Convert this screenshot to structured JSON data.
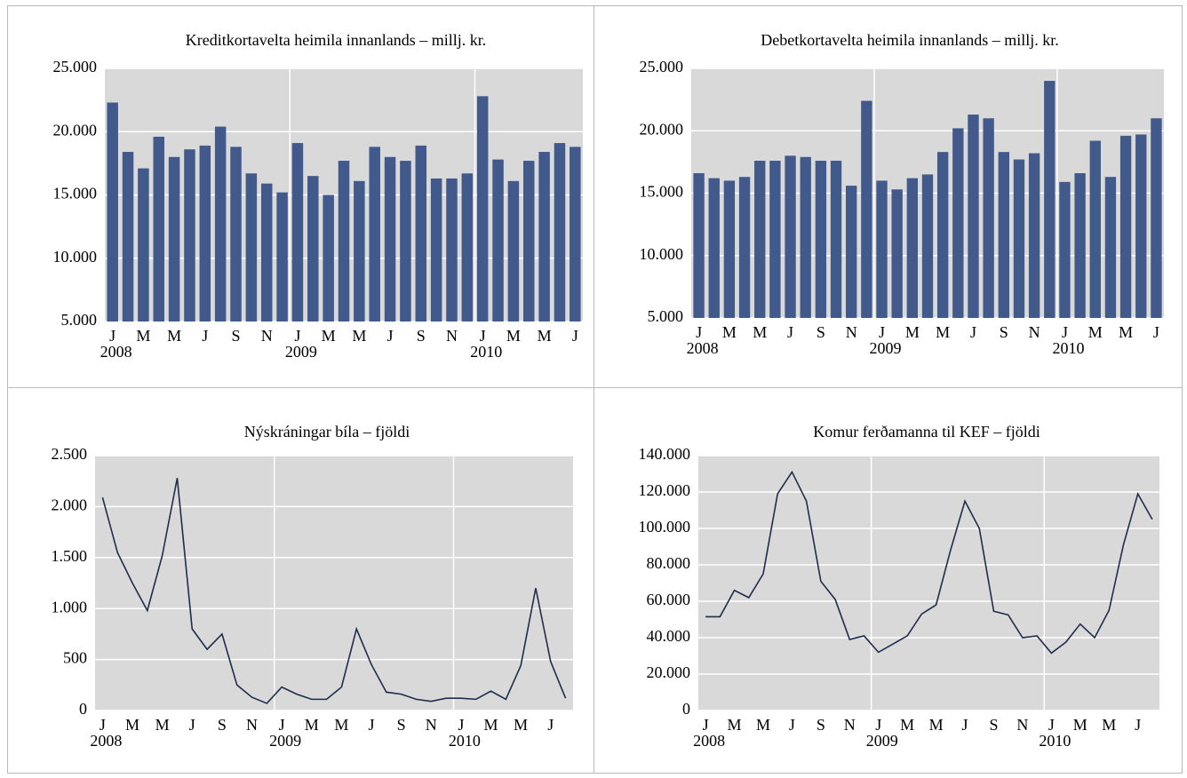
{
  "chart_data": [
    {
      "type": "bar",
      "title": "Kreditkortavelta heimila innanlands – millj. kr.",
      "color": "#41598b",
      "grid": true,
      "categories": [
        [
          "J",
          "2008"
        ],
        [
          null,
          null
        ],
        [
          "M",
          null
        ],
        [
          null,
          null
        ],
        [
          "M",
          null
        ],
        [
          null,
          null
        ],
        [
          "J",
          null
        ],
        [
          null,
          null
        ],
        [
          "S",
          null
        ],
        [
          null,
          null
        ],
        [
          "N",
          null
        ],
        [
          null,
          null
        ],
        [
          "J",
          "2009"
        ],
        [
          null,
          null
        ],
        [
          "M",
          null
        ],
        [
          null,
          null
        ],
        [
          "M",
          null
        ],
        [
          null,
          null
        ],
        [
          "J",
          null
        ],
        [
          null,
          null
        ],
        [
          "S",
          null
        ],
        [
          null,
          null
        ],
        [
          "N",
          null
        ],
        [
          null,
          null
        ],
        [
          "J",
          "2010"
        ],
        [
          null,
          null
        ],
        [
          "M",
          null
        ],
        [
          null,
          null
        ],
        [
          "M",
          null
        ],
        [
          null,
          null
        ],
        [
          "J",
          null
        ]
      ],
      "values": [
        22300,
        18400,
        17100,
        19600,
        18000,
        18600,
        18900,
        20400,
        18800,
        16700,
        15900,
        15200,
        19100,
        16500,
        15000,
        17700,
        16100,
        18800,
        18000,
        17700,
        18900,
        16300,
        16300,
        16700,
        22800,
        17800,
        16100,
        17700,
        18400,
        19100,
        18800
      ],
      "ylim": [
        5000,
        25000
      ],
      "yticks": [
        {
          "value": 5000,
          "label": "5.000"
        },
        {
          "value": 10000,
          "label": "10.000"
        },
        {
          "value": 15000,
          "label": "15.000"
        },
        {
          "value": 20000,
          "label": "20.000"
        },
        {
          "value": 25000,
          "label": "25.000"
        }
      ]
    },
    {
      "type": "bar",
      "title": "Debetkortavelta heimila innanlands – millj. kr.",
      "color": "#41598b",
      "grid": true,
      "categories": [
        [
          "J",
          "2008"
        ],
        [
          null,
          null
        ],
        [
          "M",
          null
        ],
        [
          null,
          null
        ],
        [
          "M",
          null
        ],
        [
          null,
          null
        ],
        [
          "J",
          null
        ],
        [
          null,
          null
        ],
        [
          "S",
          null
        ],
        [
          null,
          null
        ],
        [
          "N",
          null
        ],
        [
          null,
          null
        ],
        [
          "J",
          "2009"
        ],
        [
          null,
          null
        ],
        [
          "M",
          null
        ],
        [
          null,
          null
        ],
        [
          "M",
          null
        ],
        [
          null,
          null
        ],
        [
          "J",
          null
        ],
        [
          null,
          null
        ],
        [
          "S",
          null
        ],
        [
          null,
          null
        ],
        [
          "N",
          null
        ],
        [
          null,
          null
        ],
        [
          "J",
          "2010"
        ],
        [
          null,
          null
        ],
        [
          "M",
          null
        ],
        [
          null,
          null
        ],
        [
          "M",
          null
        ],
        [
          null,
          null
        ],
        [
          "J",
          null
        ]
      ],
      "values": [
        16600,
        16200,
        16000,
        16300,
        17600,
        17600,
        18000,
        17900,
        17600,
        17600,
        15600,
        22400,
        16000,
        15300,
        16200,
        16500,
        18300,
        20200,
        21300,
        21000,
        18300,
        17700,
        18200,
        24000,
        15900,
        16600,
        19200,
        16300,
        19600,
        19700,
        21000
      ],
      "ylim": [
        5000,
        25000
      ],
      "yticks": [
        {
          "value": 5000,
          "label": "5.000"
        },
        {
          "value": 10000,
          "label": "10.000"
        },
        {
          "value": 15000,
          "label": "15.000"
        },
        {
          "value": 20000,
          "label": "20.000"
        },
        {
          "value": 25000,
          "label": "25.000"
        }
      ]
    },
    {
      "type": "line",
      "title": "Nýskráningar bíla – fjöldi",
      "color": "#1f2d4d",
      "grid": true,
      "categories": [
        [
          "J",
          "2008"
        ],
        [
          null,
          null
        ],
        [
          "M",
          null
        ],
        [
          null,
          null
        ],
        [
          "M",
          null
        ],
        [
          null,
          null
        ],
        [
          "J",
          null
        ],
        [
          null,
          null
        ],
        [
          "S",
          null
        ],
        [
          null,
          null
        ],
        [
          "N",
          null
        ],
        [
          null,
          null
        ],
        [
          "J",
          "2009"
        ],
        [
          null,
          null
        ],
        [
          "M",
          null
        ],
        [
          null,
          null
        ],
        [
          "M",
          null
        ],
        [
          null,
          null
        ],
        [
          "J",
          null
        ],
        [
          null,
          null
        ],
        [
          "S",
          null
        ],
        [
          null,
          null
        ],
        [
          "N",
          null
        ],
        [
          null,
          null
        ],
        [
          "J",
          "2010"
        ],
        [
          null,
          null
        ],
        [
          "M",
          null
        ],
        [
          null,
          null
        ],
        [
          "M",
          null
        ],
        [
          null,
          null
        ],
        [
          "J",
          null
        ],
        [
          null,
          null
        ]
      ],
      "values": [
        2090,
        1550,
        1250,
        980,
        1520,
        2280,
        800,
        600,
        750,
        250,
        130,
        70,
        230,
        160,
        110,
        110,
        230,
        800,
        450,
        180,
        160,
        110,
        90,
        120,
        120,
        110,
        190,
        110,
        440,
        1200,
        480,
        120
      ],
      "ylim": [
        0,
        2500
      ],
      "yticks": [
        0,
        500,
        {
          "value": 1000,
          "label": "1.000"
        },
        {
          "value": 1500,
          "label": "1.500"
        },
        {
          "value": 2000,
          "label": "2.000"
        },
        {
          "value": 2500,
          "label": "2.500"
        }
      ]
    },
    {
      "type": "line",
      "title": "Komur ferðamanna til KEF – fjöldi",
      "color": "#1f2d4d",
      "grid": true,
      "categories": [
        [
          "J",
          "2008"
        ],
        [
          null,
          null
        ],
        [
          "M",
          null
        ],
        [
          null,
          null
        ],
        [
          "M",
          null
        ],
        [
          null,
          null
        ],
        [
          "J",
          null
        ],
        [
          null,
          null
        ],
        [
          "S",
          null
        ],
        [
          null,
          null
        ],
        [
          "N",
          null
        ],
        [
          null,
          null
        ],
        [
          "J",
          "2009"
        ],
        [
          null,
          null
        ],
        [
          "M",
          null
        ],
        [
          null,
          null
        ],
        [
          "M",
          null
        ],
        [
          null,
          null
        ],
        [
          "J",
          null
        ],
        [
          null,
          null
        ],
        [
          "S",
          null
        ],
        [
          null,
          null
        ],
        [
          "N",
          null
        ],
        [
          null,
          null
        ],
        [
          "J",
          "2010"
        ],
        [
          null,
          null
        ],
        [
          "M",
          null
        ],
        [
          null,
          null
        ],
        [
          "M",
          null
        ],
        [
          null,
          null
        ],
        [
          "J",
          null
        ],
        [
          null,
          null
        ]
      ],
      "values": [
        51500,
        51500,
        66000,
        62000,
        75000,
        119000,
        131000,
        115000,
        71000,
        61000,
        39000,
        41000,
        32000,
        36500,
        41000,
        53000,
        58000,
        88000,
        115000,
        100000,
        54500,
        52500,
        40000,
        41000,
        31500,
        37500,
        47500,
        40000,
        55000,
        91000,
        119000,
        105000
      ],
      "ylim": [
        0,
        140000
      ],
      "yticks": [
        0,
        {
          "value": 20000,
          "label": "20.000"
        },
        {
          "value": 40000,
          "label": "40.000"
        },
        {
          "value": 60000,
          "label": "60.000"
        },
        {
          "value": 80000,
          "label": "80.000"
        },
        {
          "value": 100000,
          "label": "100.000"
        },
        {
          "value": 120000,
          "label": "120.000"
        },
        {
          "value": 140000,
          "label": "140.000"
        }
      ]
    }
  ]
}
